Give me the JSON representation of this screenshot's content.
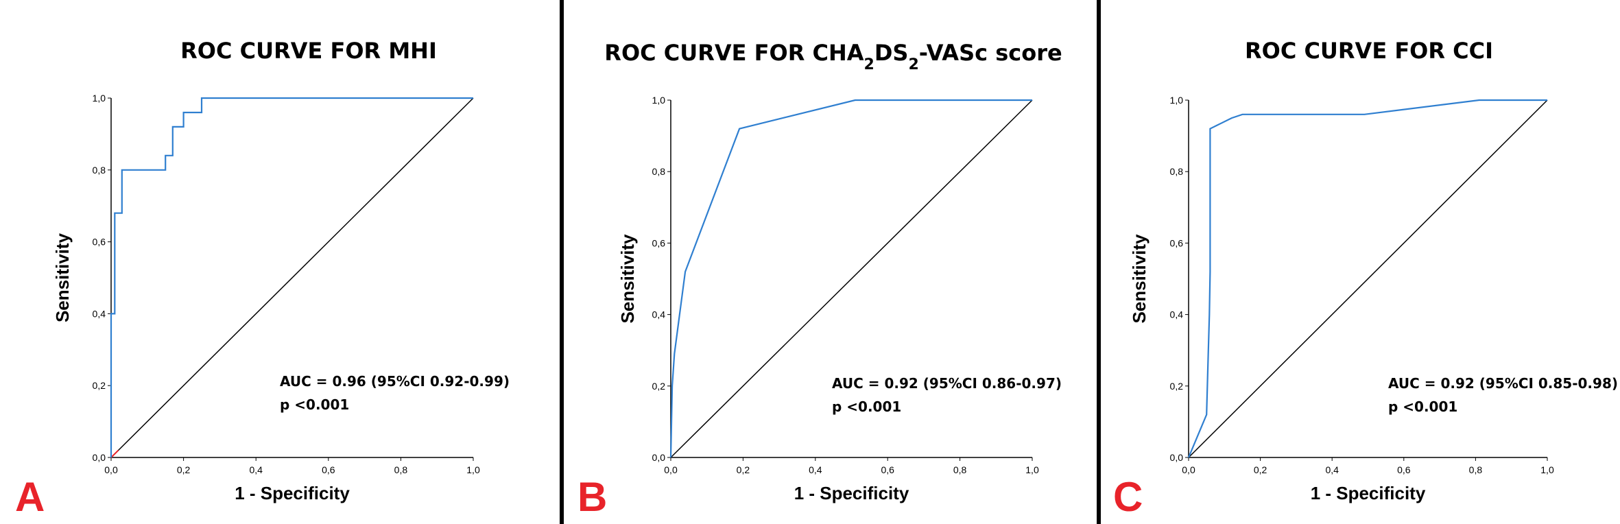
{
  "colors": {
    "roc": "#2f7fd0",
    "diagonal": "#000000",
    "panel_letter": "#e8232a",
    "divider": "#000000",
    "origin_mark": "#e8232a"
  },
  "chart_data": [
    {
      "type": "line",
      "panel": "A",
      "title": "ROC CURVE FOR MHI",
      "title_sub": "",
      "title_tail": "",
      "xlabel": "1 - Specificity",
      "ylabel": "Sensitivity",
      "xlim": [
        0,
        1
      ],
      "ylim": [
        0,
        1
      ],
      "xticks": [
        "0,0",
        "0,2",
        "0,4",
        "0,6",
        "0,8",
        "1,0"
      ],
      "yticks": [
        "0,0",
        "0,2",
        "0,4",
        "0,6",
        "0,8",
        "1,0"
      ],
      "series": [
        {
          "name": "ROC",
          "x": [
            0,
            0,
            0.01,
            0.01,
            0.03,
            0.03,
            0.15,
            0.15,
            0.17,
            0.17,
            0.2,
            0.2,
            0.25,
            0.25,
            1.0
          ],
          "y": [
            0,
            0.4,
            0.4,
            0.68,
            0.68,
            0.8,
            0.8,
            0.84,
            0.84,
            0.92,
            0.92,
            0.96,
            0.96,
            1.0,
            1.0
          ]
        },
        {
          "name": "Reference",
          "x": [
            0,
            1
          ],
          "y": [
            0,
            1
          ]
        }
      ],
      "annotation_auc": "AUC = 0.96 (95%CI 0.92-0.99)",
      "annotation_p": "p <0.001"
    },
    {
      "type": "line",
      "panel": "B",
      "title": "ROC CURVE FOR CHA",
      "title_sub": "2",
      "title_mid": "DS",
      "title_sub2": "2",
      "title_tail": "-VASc score",
      "xlabel": "1 - Specificity",
      "ylabel": "Sensitivity",
      "xlim": [
        0,
        1
      ],
      "ylim": [
        0,
        1
      ],
      "xticks": [
        "0,0",
        "0,2",
        "0,4",
        "0,6",
        "0,8",
        "1,0"
      ],
      "yticks": [
        "0,0",
        "0,2",
        "0,4",
        "0,6",
        "0,8",
        "1,0"
      ],
      "series": [
        {
          "name": "ROC",
          "x": [
            0,
            0.004,
            0.01,
            0.04,
            0.19,
            0.51,
            1.0
          ],
          "y": [
            0,
            0.2,
            0.29,
            0.52,
            0.92,
            1.0,
            1.0
          ]
        },
        {
          "name": "Reference",
          "x": [
            0,
            1
          ],
          "y": [
            0,
            1
          ]
        }
      ],
      "annotation_auc": "AUC = 0.92 (95%CI 0.86-0.97)",
      "annotation_p": "p <0.001"
    },
    {
      "type": "line",
      "panel": "C",
      "title": "ROC CURVE FOR CCI",
      "title_sub": "",
      "title_tail": "",
      "xlabel": "1 - Specificity",
      "ylabel": "Sensitivity",
      "xlim": [
        0,
        1
      ],
      "ylim": [
        0,
        1
      ],
      "xticks": [
        "0,0",
        "0,2",
        "0,4",
        "0,6",
        "0,8",
        "1,0"
      ],
      "yticks": [
        "0,0",
        "0,2",
        "0,4",
        "0,6",
        "0,8",
        "1,0"
      ],
      "series": [
        {
          "name": "ROC",
          "x": [
            0,
            0.05,
            0.055,
            0.058,
            0.06,
            0.06,
            0.08,
            0.12,
            0.15,
            0.49,
            0.81,
            1.0
          ],
          "y": [
            0,
            0.12,
            0.3,
            0.4,
            0.52,
            0.92,
            0.93,
            0.95,
            0.96,
            0.96,
            1.0,
            1.0
          ]
        },
        {
          "name": "Reference",
          "x": [
            0,
            1
          ],
          "y": [
            0,
            1
          ]
        }
      ],
      "annotation_auc": "AUC = 0.92 (95%CI 0.85-0.98)",
      "annotation_p": "p <0.001"
    }
  ]
}
